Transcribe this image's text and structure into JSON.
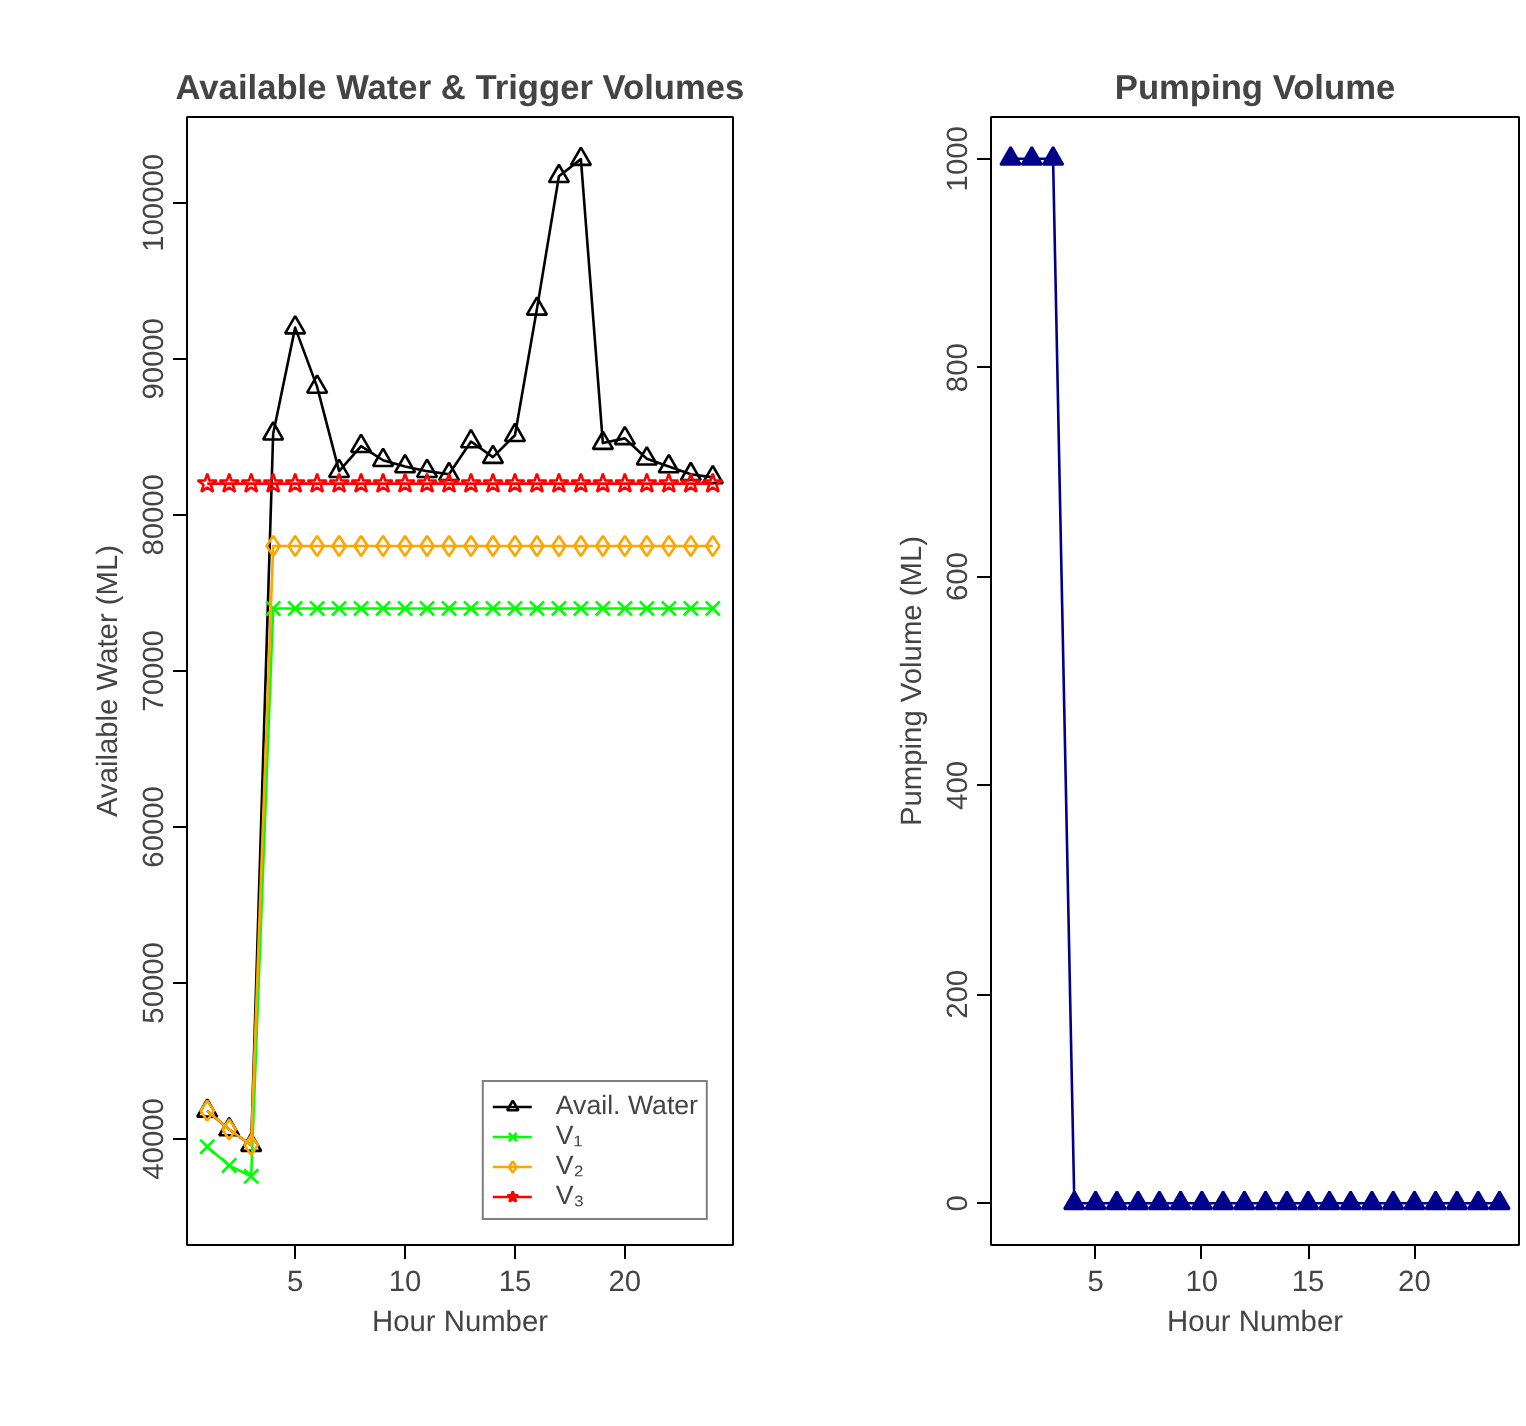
{
  "chart_data": [
    {
      "type": "line",
      "title": "Available Water & Trigger Volumes",
      "xlabel": "Hour Number",
      "ylabel": "Available Water (ML)",
      "x": [
        1,
        2,
        3,
        4,
        5,
        6,
        7,
        8,
        9,
        10,
        11,
        12,
        13,
        14,
        15,
        16,
        17,
        18,
        19,
        20,
        21,
        22,
        23,
        24
      ],
      "series": [
        {
          "name": "Avail. Water",
          "color": "#000000",
          "marker": "triangle",
          "values": [
            41800,
            40600,
            39600,
            85200,
            92000,
            88200,
            82800,
            84400,
            83500,
            83100,
            82800,
            82600,
            84700,
            83700,
            85100,
            93200,
            101700,
            102800,
            84600,
            84900,
            83600,
            83100,
            82600,
            82400
          ]
        },
        {
          "name": "V₁",
          "color": "#00ff00",
          "marker": "cross",
          "values": [
            39500,
            38300,
            37600,
            74000,
            74000,
            74000,
            74000,
            74000,
            74000,
            74000,
            74000,
            74000,
            74000,
            74000,
            74000,
            74000,
            74000,
            74000,
            74000,
            74000,
            74000,
            74000,
            74000,
            74000
          ]
        },
        {
          "name": "V₂",
          "color": "#ffa500",
          "marker": "diamond",
          "values": [
            41800,
            40600,
            39600,
            78000,
            78000,
            78000,
            78000,
            78000,
            78000,
            78000,
            78000,
            78000,
            78000,
            78000,
            78000,
            78000,
            78000,
            78000,
            78000,
            78000,
            78000,
            78000,
            78000,
            78000
          ]
        },
        {
          "name": "V₃",
          "color": "#ff0000",
          "marker": "star",
          "values": [
            82000,
            82000,
            82000,
            82000,
            82000,
            82000,
            82000,
            82000,
            82000,
            82000,
            82000,
            82000,
            82000,
            82000,
            82000,
            82000,
            82000,
            82000,
            82000,
            82000,
            82000,
            82000,
            82000,
            82000
          ]
        }
      ],
      "xlim": [
        0.08,
        24.92
      ],
      "xticks": [
        5,
        10,
        15,
        20
      ],
      "ylim": [
        33200,
        105500
      ],
      "yticks": [
        40000,
        50000,
        60000,
        70000,
        80000,
        90000,
        100000
      ],
      "grid": false,
      "legend": "bottom right"
    },
    {
      "type": "line",
      "title": "Pumping Volume",
      "xlabel": "Hour Number",
      "ylabel": "Pumping Volume (ML)",
      "x": [
        1,
        2,
        3,
        4,
        5,
        6,
        7,
        8,
        9,
        10,
        11,
        12,
        13,
        14,
        15,
        16,
        17,
        18,
        19,
        20,
        21,
        22,
        23,
        24
      ],
      "series": [
        {
          "color": "#00008b",
          "marker": "triangle",
          "values": [
            1000,
            1000,
            1000,
            0,
            0,
            0,
            0,
            0,
            0,
            0,
            0,
            0,
            0,
            0,
            0,
            0,
            0,
            0,
            0,
            0,
            0,
            0,
            0,
            0
          ]
        }
      ],
      "xlim": [
        0.08,
        24.92
      ],
      "xticks": [
        5,
        10,
        15,
        20
      ],
      "ylim": [
        -40,
        1040
      ],
      "yticks": [
        0,
        200,
        400,
        600,
        800,
        1000
      ],
      "grid": false,
      "legend": false
    }
  ]
}
